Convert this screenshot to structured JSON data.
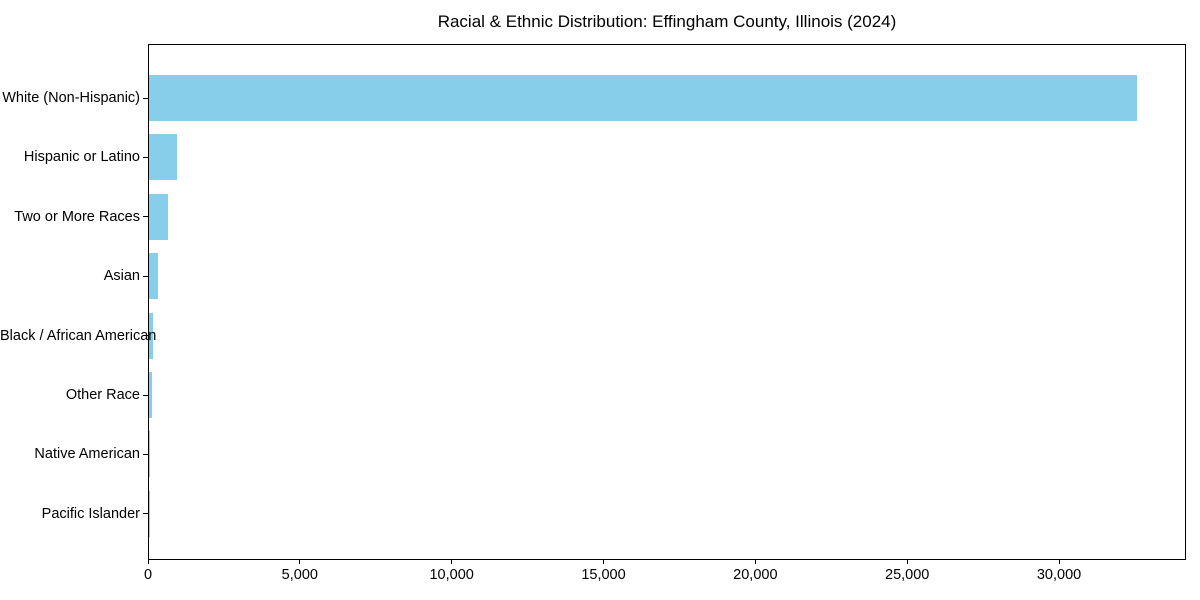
{
  "chart_data": {
    "type": "bar",
    "orientation": "horizontal",
    "title": "Racial & Ethnic Distribution: Effingham County, Illinois (2024)",
    "categories": [
      "White (Non-Hispanic)",
      "Hispanic or Latino",
      "Two or More Races",
      "Asian",
      "Black / African American",
      "Other Race",
      "Native American",
      "Pacific Islander"
    ],
    "values": [
      32550,
      930,
      610,
      280,
      125,
      85,
      35,
      10
    ],
    "xlabel": "",
    "ylabel": "",
    "xlim": [
      0,
      34180
    ],
    "xticks": [
      {
        "value": 0,
        "label": "0"
      },
      {
        "value": 5000,
        "label": "5,000"
      },
      {
        "value": 10000,
        "label": "10,000"
      },
      {
        "value": 15000,
        "label": "15,000"
      },
      {
        "value": 20000,
        "label": "20,000"
      },
      {
        "value": 25000,
        "label": "25,000"
      },
      {
        "value": 30000,
        "label": "30,000"
      }
    ],
    "bar_color": "#87CEEB",
    "background_color": "#ffffff",
    "text_color": "#000000",
    "grid": false,
    "legend": null
  }
}
